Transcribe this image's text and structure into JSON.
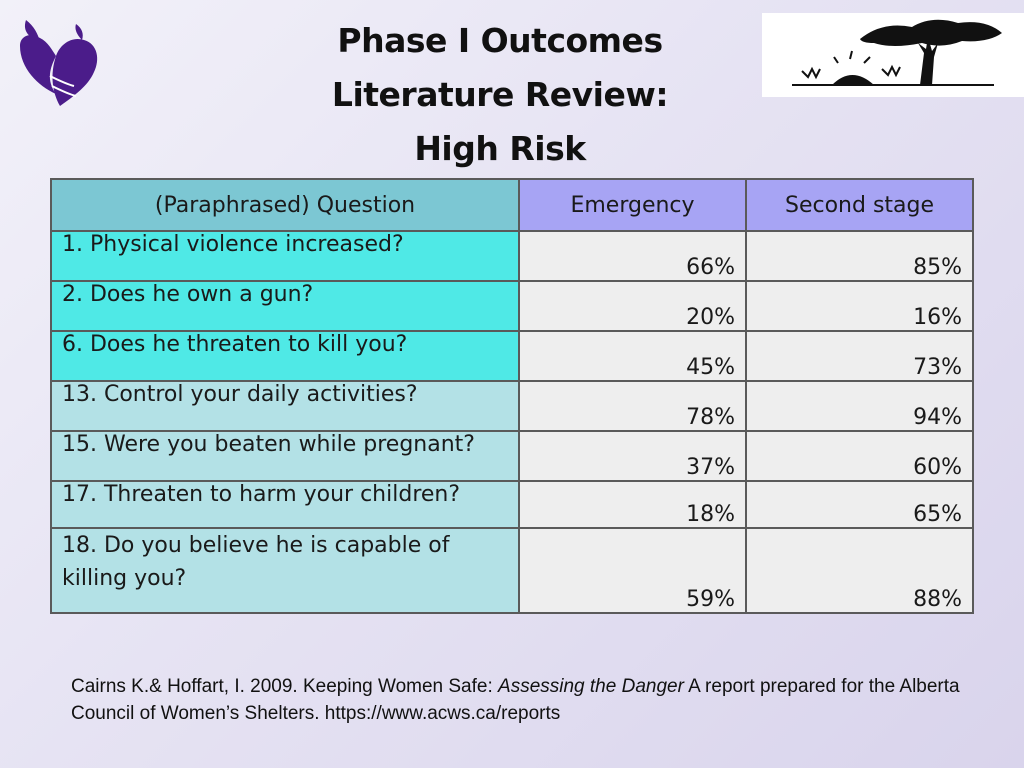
{
  "title": {
    "line1": "Phase I Outcomes",
    "line2": "Literature Review:",
    "line3": "High Risk"
  },
  "icons": {
    "left_logo": "purple-heart-hands-logo",
    "right_logo": "acacia-tree-sunrise-logo"
  },
  "colors": {
    "header_question_bg": "#7cc7d3",
    "header_numeric_bg": "#a7a4f4",
    "question_bright_bg": "#4fe9e6",
    "question_pale_bg": "#b3e1e6",
    "value_bg": "#eeeeee",
    "logo_purple": "#4b1c8a"
  },
  "table": {
    "headers": [
      "(Paraphrased) Question",
      "Emergency",
      "Second stage"
    ],
    "rows": [
      {
        "question": "1. Physical violence increased?",
        "emergency": "66%",
        "second_stage": "85%"
      },
      {
        "question": "2. Does he own a gun?",
        "emergency": "20%",
        "second_stage": "16%"
      },
      {
        "question": "6. Does he threaten to kill you?",
        "emergency": "45%",
        "second_stage": "73%"
      },
      {
        "question": "13. Control your daily activities?",
        "emergency": "78%",
        "second_stage": "94%"
      },
      {
        "question": "15. Were you beaten while pregnant?",
        "emergency": "37%",
        "second_stage": "60%"
      },
      {
        "question": "17. Threaten to harm your children?",
        "emergency": "18%",
        "second_stage": "65%"
      },
      {
        "question": "18. Do you believe he is capable of killing you?",
        "emergency": "59%",
        "second_stage": "88%"
      }
    ]
  },
  "citation": {
    "part1": "Cairns K.& Hoffart, I. 2009.  Keeping Women Safe:  ",
    "italic": "Assessing the Danger",
    "part2": "  A report prepared for the Alberta Council of Women’s Shelters. https://www.acws.ca/reports"
  }
}
